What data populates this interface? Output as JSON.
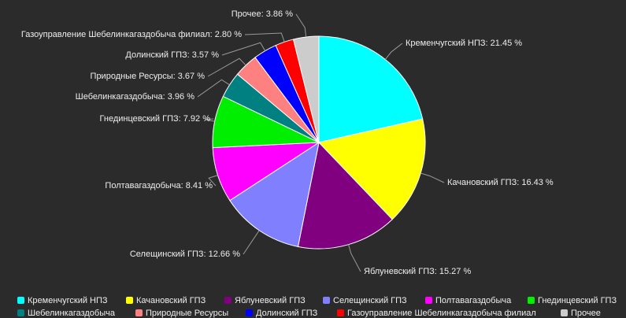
{
  "chart_data": {
    "type": "pie",
    "categories": [
      "Кременчугский НПЗ",
      "Качановский ГПЗ",
      "Яблуневский ГПЗ",
      "Селещинский ГПЗ",
      "Полтавагаздобыча",
      "Гнединцевский ГПЗ",
      "Шебелинкагаздобыча",
      "Природные Ресурсы",
      "Долинский ГПЗ",
      "Газоуправление Шебелинкагаздобыча филиал",
      "Прочее"
    ],
    "values": [
      21.45,
      16.43,
      15.27,
      12.66,
      8.41,
      7.92,
      3.96,
      3.67,
      3.57,
      2.8,
      3.86
    ],
    "value_labels": [
      "Кременчугский НПЗ: 21.45 %",
      "Качановский ГПЗ: 16.43 %",
      "Яблуневский ГПЗ: 15.27 %",
      "Селещинский ГПЗ: 12.66 %",
      "Полтавагаздобыча: 8.41 %",
      "Гнединцевский ГПЗ: 7.92 %",
      "Шебелинкагаздобыча: 3.96 %",
      "Природные Ресурсы: 3.67 %",
      "Долинский ГПЗ: 3.57 %",
      "Газоуправление Шебелинкагаздобыча филиал: 2.80 %",
      "Прочее: 3.86 %"
    ],
    "colors": [
      "#00ffff",
      "#ffff00",
      "#800080",
      "#8080ff",
      "#ff00ff",
      "#00ee00",
      "#008080",
      "#ff8080",
      "#0000ff",
      "#ff0000",
      "#cccccc"
    ],
    "legend": "bottom"
  }
}
